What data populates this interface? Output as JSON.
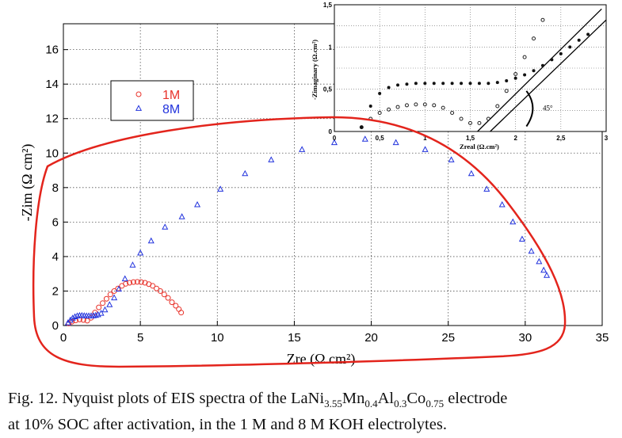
{
  "chart_data": [
    {
      "type": "scatter",
      "xlabel": "Zre (Ω cm²)",
      "ylabel": "-Zim (Ω cm²)",
      "xlim": [
        0,
        35
      ],
      "ylim": [
        0,
        17.5
      ],
      "xticks": [
        0,
        5,
        10,
        15,
        20,
        25,
        30,
        35
      ],
      "yticks": [
        0,
        2,
        4,
        6,
        8,
        10,
        12,
        14,
        16
      ],
      "grid": true,
      "legend_position": "top-left",
      "series": [
        {
          "name": "1M",
          "marker": "circle",
          "color": "#e8322a",
          "x": [
            0.35,
            0.55,
            0.8,
            1.05,
            1.3,
            1.55,
            1.8,
            2.05,
            2.3,
            2.55,
            2.8,
            3.05,
            3.3,
            3.55,
            3.8,
            4.05,
            4.3,
            4.55,
            4.8,
            5.05,
            5.3,
            5.55,
            5.8,
            6.05,
            6.3,
            6.55,
            6.8,
            7.05,
            7.3,
            7.5,
            7.65
          ],
          "y": [
            0.12,
            0.22,
            0.3,
            0.35,
            0.32,
            0.28,
            0.45,
            0.75,
            1.05,
            1.3,
            1.55,
            1.8,
            2.0,
            2.15,
            2.3,
            2.42,
            2.48,
            2.52,
            2.53,
            2.52,
            2.48,
            2.4,
            2.3,
            2.15,
            2.0,
            1.8,
            1.6,
            1.35,
            1.15,
            0.95,
            0.75
          ]
        },
        {
          "name": "8M",
          "marker": "triangle",
          "color": "#2233dd",
          "x": [
            0.3,
            0.45,
            0.6,
            0.75,
            0.9,
            1.05,
            1.2,
            1.35,
            1.5,
            1.65,
            1.8,
            1.95,
            2.1,
            2.25,
            2.45,
            2.7,
            3.0,
            3.3,
            3.6,
            4.0,
            4.5,
            5.0,
            5.7,
            6.6,
            7.7,
            8.7,
            10.2,
            11.8,
            13.5,
            15.5,
            17.6,
            19.6,
            21.6,
            23.5,
            25.2,
            26.5,
            27.5,
            28.5,
            29.2,
            29.8,
            30.4,
            30.9,
            31.2,
            31.4
          ],
          "y": [
            0.15,
            0.3,
            0.42,
            0.5,
            0.55,
            0.57,
            0.57,
            0.56,
            0.55,
            0.55,
            0.55,
            0.56,
            0.58,
            0.62,
            0.7,
            0.9,
            1.2,
            1.6,
            2.1,
            2.7,
            3.5,
            4.2,
            4.9,
            5.7,
            6.3,
            7.0,
            7.9,
            8.8,
            9.6,
            10.2,
            10.6,
            10.8,
            10.6,
            10.2,
            9.6,
            8.8,
            7.9,
            7.0,
            6.0,
            5.0,
            4.3,
            3.7,
            3.2,
            2.9
          ]
        }
      ],
      "annotation": "hand-drawn red loop around the 8M semicircle"
    },
    {
      "type": "scatter",
      "xlabel": "Zreal (Ω.cm²)",
      "ylabel": "-Zimaginary (Ω.cm²)",
      "xlim": [
        0,
        3
      ],
      "ylim": [
        0,
        1.5
      ],
      "xticks": [
        "0",
        "0,5",
        "1",
        "1,5",
        "2",
        "2,5",
        "3"
      ],
      "yticks": [
        "0",
        "0,5",
        "1",
        "1,5"
      ],
      "grid": true,
      "angle_label": "45°",
      "series": [
        {
          "name": "",
          "marker": "open-circle",
          "x": [
            0.3,
            0.4,
            0.5,
            0.6,
            0.7,
            0.8,
            0.9,
            1.0,
            1.1,
            1.2,
            1.3,
            1.4,
            1.5,
            1.6,
            1.7,
            1.8,
            1.9,
            2.0,
            2.1,
            2.2,
            2.3
          ],
          "y": [
            0.05,
            0.15,
            0.22,
            0.26,
            0.29,
            0.31,
            0.32,
            0.32,
            0.31,
            0.28,
            0.22,
            0.15,
            0.1,
            0.1,
            0.15,
            0.3,
            0.48,
            0.68,
            0.88,
            1.1,
            1.32
          ],
          "color": "#222222"
        },
        {
          "name": "",
          "marker": "filled-circle",
          "x": [
            0.3,
            0.4,
            0.5,
            0.6,
            0.7,
            0.8,
            0.9,
            1.0,
            1.1,
            1.2,
            1.3,
            1.4,
            1.5,
            1.6,
            1.7,
            1.8,
            1.9,
            2.0,
            2.1,
            2.2,
            2.3,
            2.4,
            2.5,
            2.6,
            2.7,
            2.8
          ],
          "y": [
            0.05,
            0.3,
            0.45,
            0.52,
            0.55,
            0.56,
            0.57,
            0.57,
            0.57,
            0.57,
            0.57,
            0.57,
            0.57,
            0.57,
            0.57,
            0.58,
            0.6,
            0.63,
            0.67,
            0.72,
            0.78,
            0.85,
            0.92,
            1.0,
            1.08,
            1.15
          ],
          "color": "#111111"
        }
      ]
    }
  ],
  "legend": [
    {
      "label": "1M",
      "color": "#e8322a",
      "marker": "circle"
    },
    {
      "label": "8M",
      "color": "#2233dd",
      "marker": "triangle"
    }
  ],
  "caption": {
    "prefix": "Fig. 12.  Nyquist plots of EIS spectra of the ",
    "formula": [
      "LaNi",
      "3.55",
      "Mn",
      "0.4",
      "Al",
      "0.3",
      "Co",
      "0.75"
    ],
    "suffix": " electrode",
    "line2": "at 10% SOC after activation, in the 1 M and 8 M KOH electrolytes."
  }
}
